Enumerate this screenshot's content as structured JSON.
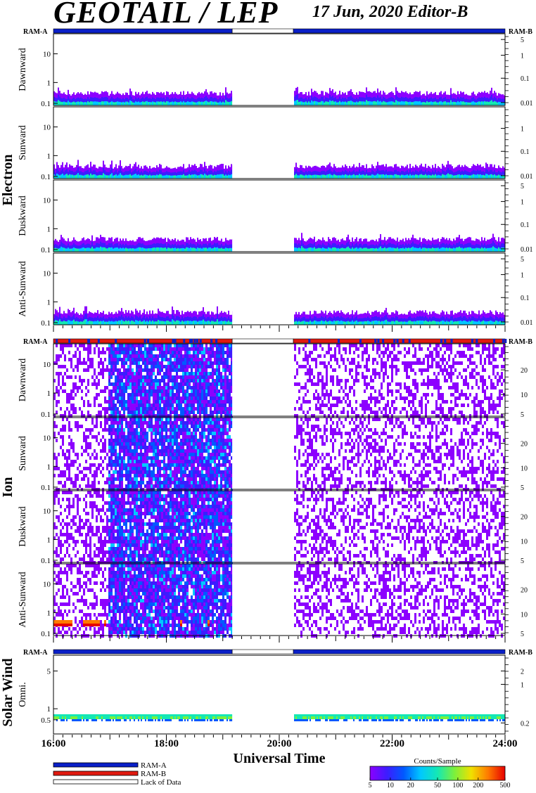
{
  "header": {
    "title": "GEOTAIL / LEP",
    "date": "17 Jun, 2020   Editor-B"
  },
  "colors": {
    "ram_a": "#0a1fc8",
    "ram_b": "#e01a10",
    "lack": "#ffffff",
    "colorbar": [
      "#8c00ff",
      "#3d1cff",
      "#0059ff",
      "#00c8ff",
      "#14e8b4",
      "#7cf03c",
      "#f0e000",
      "#ff7a00",
      "#e60000"
    ]
  },
  "chart_data": {
    "type": "heatmap",
    "x_axis": {
      "label": "Universal Time",
      "range": [
        "16:00",
        "24:00"
      ],
      "ticks": [
        "16:00",
        "18:00",
        "20:00",
        "22:00",
        "24:00"
      ]
    },
    "data_gap": {
      "start": "19:10",
      "end": "20:15"
    },
    "groups": [
      {
        "name": "Electron",
        "status_bar": {
          "left_label": "RAM-A",
          "right_label": "RAM-B",
          "segments": [
            {
              "start": "16:00",
              "end": "19:10",
              "mode": "RAM-A"
            },
            {
              "start": "19:10",
              "end": "20:15",
              "mode": "Lack of Data"
            },
            {
              "start": "20:15",
              "end": "24:00",
              "mode": "RAM-A"
            }
          ]
        },
        "panels": [
          {
            "ylabel": "Dawnward",
            "left_ticks": [
              "10",
              "1",
              "0.1"
            ],
            "right_ticks": [
              "5",
              "1",
              "0.1",
              "0.01"
            ]
          },
          {
            "ylabel": "Sunward",
            "left_ticks": [
              "10",
              "1",
              "0.1"
            ],
            "right_ticks": [
              "1",
              "0.1",
              "0.01"
            ]
          },
          {
            "ylabel": "Duskward",
            "left_ticks": [
              "10",
              "1",
              "0.1"
            ],
            "right_ticks": [
              "5",
              "1",
              "0.1",
              "0.01"
            ]
          },
          {
            "ylabel": "Anti-Sunward",
            "left_ticks": [
              "10",
              "1",
              "0.1"
            ],
            "right_ticks": [
              "5",
              "1",
              "0.1",
              "0.01"
            ]
          }
        ]
      },
      {
        "name": "Ion",
        "status_bar": {
          "left_label": "RAM-A",
          "right_label": "RAM-B",
          "segments": [
            {
              "start": "16:00",
              "end": "19:10",
              "mode": "RAM-B"
            },
            {
              "start": "19:10",
              "end": "20:15",
              "mode": "Lack of Data"
            },
            {
              "start": "20:15",
              "end": "24:00",
              "mode": "RAM-B"
            }
          ]
        },
        "panels": [
          {
            "ylabel": "Dawnward",
            "left_ticks": [
              "10",
              "1",
              "0.1"
            ],
            "right_ticks": [
              "20",
              "10",
              "5"
            ]
          },
          {
            "ylabel": "Sunward",
            "left_ticks": [
              "10",
              "1",
              "0.1"
            ],
            "right_ticks": [
              "20",
              "10",
              "5"
            ]
          },
          {
            "ylabel": "Duskward",
            "left_ticks": [
              "10",
              "1",
              "0.1"
            ],
            "right_ticks": [
              "20",
              "10",
              "5"
            ]
          },
          {
            "ylabel": "Anti-Sunward",
            "left_ticks": [
              "10",
              "1",
              "0.1"
            ],
            "right_ticks": [
              "20",
              "10",
              "5"
            ]
          }
        ]
      },
      {
        "name": "Solar Wind",
        "status_bar": {
          "left_label": "RAM-A",
          "right_label": "RAM-B",
          "segments": [
            {
              "start": "16:00",
              "end": "19:10",
              "mode": "RAM-A"
            },
            {
              "start": "19:10",
              "end": "20:15",
              "mode": "Lack of Data"
            },
            {
              "start": "20:15",
              "end": "24:00",
              "mode": "RAM-A"
            }
          ]
        },
        "panels": [
          {
            "ylabel": "Omni.",
            "left_ticks": [
              "5",
              "1",
              "0.5"
            ],
            "right_ticks": [
              "2",
              "1",
              "0.2"
            ]
          }
        ]
      }
    ],
    "legend": {
      "items": [
        {
          "label": "RAM-A",
          "color": "#0a1fc8"
        },
        {
          "label": "RAM-B",
          "color": "#e01a10"
        },
        {
          "label": "Lack of Data",
          "color": "#ffffff"
        }
      ]
    },
    "colorbar": {
      "title": "Counts/Sample",
      "scale": "log",
      "range": [
        5,
        500
      ],
      "ticks": [
        "5",
        "10",
        "20",
        "50",
        "100",
        "200",
        "500"
      ]
    }
  }
}
